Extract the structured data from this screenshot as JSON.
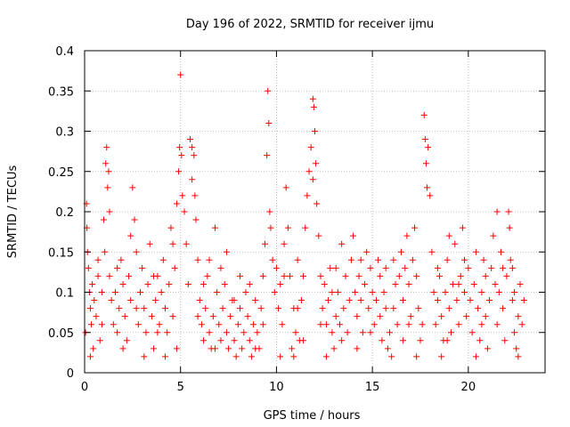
{
  "chart_data": {
    "type": "scatter",
    "title": "Day 196 of 2022, SRMTID for receiver ijmu",
    "xlabel": "GPS time / hours",
    "ylabel": "SRMTID / TECUs",
    "xlim": [
      0,
      24
    ],
    "ylim": [
      0,
      0.4
    ],
    "xticks": [
      0,
      5,
      10,
      15,
      20
    ],
    "yticks": [
      0,
      0.05,
      0.1,
      0.15,
      0.2,
      0.25,
      0.3,
      0.35,
      0.4
    ],
    "xtick_labels": [
      "0",
      "5",
      "10",
      "15",
      "20"
    ],
    "ytick_labels": [
      "0",
      "0.05",
      "0.1",
      "0.15",
      "0.2",
      "0.25",
      "0.3",
      "0.35",
      "0.4"
    ],
    "grid": true,
    "marker": "+",
    "color": "#ff0000",
    "series": [
      {
        "name": "SRMTID",
        "points": [
          [
            0.05,
            0.05
          ],
          [
            0.1,
            0.21
          ],
          [
            0.12,
            0.18
          ],
          [
            0.15,
            0.15
          ],
          [
            0.2,
            0.13
          ],
          [
            0.25,
            0.1
          ],
          [
            0.3,
            0.08
          ],
          [
            0.35,
            0.06
          ],
          [
            0.4,
            0.11
          ],
          [
            0.45,
            0.03
          ],
          [
            0.5,
            0.09
          ],
          [
            0.6,
            0.07
          ],
          [
            0.7,
            0.12
          ],
          [
            0.8,
            0.04
          ],
          [
            0.9,
            0.1
          ],
          [
            1.0,
            0.19
          ],
          [
            1.05,
            0.15
          ],
          [
            1.1,
            0.26
          ],
          [
            1.15,
            0.28
          ],
          [
            1.2,
            0.23
          ],
          [
            1.25,
            0.25
          ],
          [
            1.3,
            0.12
          ],
          [
            1.4,
            0.09
          ],
          [
            1.5,
            0.06
          ],
          [
            1.6,
            0.1
          ],
          [
            1.7,
            0.05
          ],
          [
            1.8,
            0.08
          ],
          [
            1.9,
            0.14
          ],
          [
            2.0,
            0.11
          ],
          [
            2.1,
            0.07
          ],
          [
            2.2,
            0.04
          ],
          [
            2.3,
            0.12
          ],
          [
            2.4,
            0.09
          ],
          [
            2.5,
            0.23
          ],
          [
            2.6,
            0.19
          ],
          [
            2.7,
            0.15
          ],
          [
            2.8,
            0.06
          ],
          [
            2.9,
            0.1
          ],
          [
            3.0,
            0.13
          ],
          [
            3.1,
            0.08
          ],
          [
            3.2,
            0.05
          ],
          [
            3.3,
            0.11
          ],
          [
            3.4,
            0.16
          ],
          [
            3.5,
            0.07
          ],
          [
            3.6,
            0.03
          ],
          [
            3.7,
            0.09
          ],
          [
            3.8,
            0.12
          ],
          [
            3.9,
            0.06
          ],
          [
            4.0,
            0.1
          ],
          [
            4.1,
            0.14
          ],
          [
            4.2,
            0.08
          ],
          [
            4.3,
            0.05
          ],
          [
            4.4,
            0.11
          ],
          [
            4.5,
            0.18
          ],
          [
            4.6,
            0.16
          ],
          [
            4.7,
            0.13
          ],
          [
            4.8,
            0.21
          ],
          [
            4.9,
            0.25
          ],
          [
            4.95,
            0.28
          ],
          [
            5.0,
            0.37
          ],
          [
            5.05,
            0.27
          ],
          [
            5.1,
            0.22
          ],
          [
            5.2,
            0.2
          ],
          [
            5.3,
            0.16
          ],
          [
            5.4,
            0.11
          ],
          [
            5.5,
            0.29
          ],
          [
            5.6,
            0.28
          ],
          [
            5.7,
            0.27
          ],
          [
            5.75,
            0.22
          ],
          [
            5.8,
            0.19
          ],
          [
            5.9,
            0.14
          ],
          [
            6.0,
            0.09
          ],
          [
            6.1,
            0.06
          ],
          [
            6.2,
            0.04
          ],
          [
            6.3,
            0.08
          ],
          [
            6.4,
            0.12
          ],
          [
            6.5,
            0.05
          ],
          [
            6.6,
            0.03
          ],
          [
            6.7,
            0.07
          ],
          [
            6.8,
            0.18
          ],
          [
            6.9,
            0.1
          ],
          [
            7.0,
            0.06
          ],
          [
            7.1,
            0.04
          ],
          [
            7.2,
            0.08
          ],
          [
            7.3,
            0.11
          ],
          [
            7.4,
            0.05
          ],
          [
            7.5,
            0.03
          ],
          [
            7.6,
            0.07
          ],
          [
            7.7,
            0.09
          ],
          [
            7.8,
            0.04
          ],
          [
            7.9,
            0.02
          ],
          [
            8.0,
            0.06
          ],
          [
            8.1,
            0.08
          ],
          [
            8.2,
            0.03
          ],
          [
            8.3,
            0.05
          ],
          [
            8.4,
            0.1
          ],
          [
            8.5,
            0.07
          ],
          [
            8.6,
            0.04
          ],
          [
            8.7,
            0.02
          ],
          [
            8.8,
            0.06
          ],
          [
            8.9,
            0.09
          ],
          [
            9.0,
            0.05
          ],
          [
            9.1,
            0.03
          ],
          [
            9.2,
            0.08
          ],
          [
            9.3,
            0.12
          ],
          [
            9.4,
            0.16
          ],
          [
            9.5,
            0.27
          ],
          [
            9.55,
            0.35
          ],
          [
            9.6,
            0.31
          ],
          [
            9.65,
            0.2
          ],
          [
            9.7,
            0.18
          ],
          [
            9.8,
            0.14
          ],
          [
            9.9,
            0.1
          ],
          [
            10.0,
            0.13
          ],
          [
            10.1,
            0.08
          ],
          [
            10.2,
            0.11
          ],
          [
            10.3,
            0.06
          ],
          [
            10.4,
            0.16
          ],
          [
            10.5,
            0.23
          ],
          [
            10.6,
            0.18
          ],
          [
            10.7,
            0.12
          ],
          [
            10.8,
            0.03
          ],
          [
            10.9,
            0.02
          ],
          [
            11.0,
            0.05
          ],
          [
            11.1,
            0.08
          ],
          [
            11.2,
            0.04
          ],
          [
            11.3,
            0.09
          ],
          [
            11.4,
            0.12
          ],
          [
            11.5,
            0.18
          ],
          [
            11.6,
            0.22
          ],
          [
            11.7,
            0.25
          ],
          [
            11.8,
            0.28
          ],
          [
            11.9,
            0.34
          ],
          [
            11.95,
            0.33
          ],
          [
            12.0,
            0.3
          ],
          [
            12.05,
            0.26
          ],
          [
            12.1,
            0.21
          ],
          [
            12.2,
            0.17
          ],
          [
            12.3,
            0.12
          ],
          [
            12.4,
            0.08
          ],
          [
            12.5,
            0.11
          ],
          [
            12.6,
            0.06
          ],
          [
            12.7,
            0.09
          ],
          [
            12.8,
            0.13
          ],
          [
            12.9,
            0.05
          ],
          [
            13.0,
            0.03
          ],
          [
            13.1,
            0.07
          ],
          [
            13.2,
            0.1
          ],
          [
            13.3,
            0.06
          ],
          [
            13.4,
            0.04
          ],
          [
            13.5,
            0.08
          ],
          [
            13.6,
            0.12
          ],
          [
            13.7,
            0.05
          ],
          [
            13.8,
            0.09
          ],
          [
            13.9,
            0.14
          ],
          [
            14.0,
            0.17
          ],
          [
            14.1,
            0.1
          ],
          [
            14.2,
            0.07
          ],
          [
            14.3,
            0.12
          ],
          [
            14.4,
            0.09
          ],
          [
            14.5,
            0.05
          ],
          [
            14.6,
            0.11
          ],
          [
            14.7,
            0.15
          ],
          [
            14.8,
            0.08
          ],
          [
            14.9,
            0.13
          ],
          [
            15.0,
            0.1
          ],
          [
            15.1,
            0.06
          ],
          [
            15.2,
            0.09
          ],
          [
            15.3,
            0.14
          ],
          [
            15.4,
            0.07
          ],
          [
            15.5,
            0.04
          ],
          [
            15.6,
            0.1
          ],
          [
            15.7,
            0.13
          ],
          [
            15.8,
            0.03
          ],
          [
            15.9,
            0.05
          ],
          [
            16.0,
            0.02
          ],
          [
            16.1,
            0.08
          ],
          [
            16.2,
            0.11
          ],
          [
            16.3,
            0.06
          ],
          [
            16.4,
            0.12
          ],
          [
            16.5,
            0.15
          ],
          [
            16.6,
            0.09
          ],
          [
            16.7,
            0.13
          ],
          [
            16.8,
            0.17
          ],
          [
            16.9,
            0.11
          ],
          [
            17.0,
            0.07
          ],
          [
            17.1,
            0.14
          ],
          [
            17.2,
            0.18
          ],
          [
            17.3,
            0.12
          ],
          [
            17.4,
            0.08
          ],
          [
            17.5,
            0.04
          ],
          [
            17.6,
            0.06
          ],
          [
            17.7,
            0.32
          ],
          [
            17.75,
            0.29
          ],
          [
            17.8,
            0.26
          ],
          [
            17.85,
            0.23
          ],
          [
            17.9,
            0.28
          ],
          [
            18.0,
            0.22
          ],
          [
            18.1,
            0.15
          ],
          [
            18.2,
            0.1
          ],
          [
            18.3,
            0.06
          ],
          [
            18.4,
            0.09
          ],
          [
            18.5,
            0.12
          ],
          [
            18.6,
            0.07
          ],
          [
            18.7,
            0.04
          ],
          [
            18.8,
            0.1
          ],
          [
            18.9,
            0.14
          ],
          [
            19.0,
            0.08
          ],
          [
            19.1,
            0.05
          ],
          [
            19.2,
            0.11
          ],
          [
            19.3,
            0.16
          ],
          [
            19.4,
            0.09
          ],
          [
            19.5,
            0.06
          ],
          [
            19.6,
            0.12
          ],
          [
            19.7,
            0.18
          ],
          [
            19.8,
            0.1
          ],
          [
            19.9,
            0.07
          ],
          [
            20.0,
            0.13
          ],
          [
            20.1,
            0.09
          ],
          [
            20.2,
            0.05
          ],
          [
            20.3,
            0.11
          ],
          [
            20.4,
            0.15
          ],
          [
            20.5,
            0.08
          ],
          [
            20.6,
            0.04
          ],
          [
            20.7,
            0.1
          ],
          [
            20.8,
            0.14
          ],
          [
            20.9,
            0.07
          ],
          [
            21.0,
            0.03
          ],
          [
            21.1,
            0.09
          ],
          [
            21.2,
            0.13
          ],
          [
            21.3,
            0.17
          ],
          [
            21.4,
            0.11
          ],
          [
            21.5,
            0.06
          ],
          [
            21.6,
            0.1
          ],
          [
            21.7,
            0.15
          ],
          [
            21.8,
            0.08
          ],
          [
            21.9,
            0.04
          ],
          [
            22.0,
            0.12
          ],
          [
            22.1,
            0.2
          ],
          [
            22.15,
            0.18
          ],
          [
            22.2,
            0.14
          ],
          [
            22.3,
            0.09
          ],
          [
            22.4,
            0.05
          ],
          [
            22.5,
            0.03
          ],
          [
            22.6,
            0.07
          ],
          [
            22.7,
            0.11
          ],
          [
            22.8,
            0.06
          ],
          [
            22.9,
            0.09
          ],
          [
            0.3,
            0.02
          ],
          [
            1.7,
            0.13
          ],
          [
            3.1,
            0.02
          ],
          [
            4.8,
            0.03
          ],
          [
            6.5,
            0.14
          ],
          [
            8.1,
            0.12
          ],
          [
            10.2,
            0.02
          ],
          [
            12.6,
            0.02
          ],
          [
            14.2,
            0.03
          ],
          [
            16.1,
            0.14
          ],
          [
            18.6,
            0.02
          ],
          [
            20.4,
            0.02
          ],
          [
            22.3,
            0.13
          ],
          [
            2.4,
            0.17
          ],
          [
            7.4,
            0.15
          ],
          [
            13.4,
            0.16
          ],
          [
            19.0,
            0.17
          ],
          [
            21.5,
            0.2
          ],
          [
            5.6,
            0.24
          ],
          [
            11.9,
            0.24
          ],
          [
            0.7,
            0.14
          ],
          [
            1.3,
            0.2
          ],
          [
            2.0,
            0.03
          ],
          [
            3.6,
            0.12
          ],
          [
            4.2,
            0.02
          ],
          [
            5.9,
            0.07
          ],
          [
            6.8,
            0.03
          ],
          [
            7.8,
            0.09
          ],
          [
            8.6,
            0.11
          ],
          [
            9.3,
            0.06
          ],
          [
            10.4,
            0.12
          ],
          [
            11.1,
            0.14
          ],
          [
            12.3,
            0.06
          ],
          [
            13.1,
            0.13
          ],
          [
            14.4,
            0.14
          ],
          [
            15.4,
            0.12
          ],
          [
            16.6,
            0.04
          ],
          [
            17.3,
            0.02
          ],
          [
            18.4,
            0.13
          ],
          [
            19.5,
            0.11
          ],
          [
            20.7,
            0.06
          ],
          [
            21.8,
            0.13
          ],
          [
            22.6,
            0.02
          ],
          [
            0.9,
            0.06
          ],
          [
            2.7,
            0.08
          ],
          [
            4.6,
            0.07
          ],
          [
            6.2,
            0.11
          ],
          [
            8.9,
            0.03
          ],
          [
            10.9,
            0.08
          ],
          [
            12.9,
            0.1
          ],
          [
            14.9,
            0.05
          ],
          [
            16.9,
            0.06
          ],
          [
            18.9,
            0.04
          ],
          [
            20.9,
            0.12
          ],
          [
            22.4,
            0.1
          ],
          [
            3.8,
            0.05
          ],
          [
            7.1,
            0.13
          ],
          [
            11.4,
            0.04
          ],
          [
            15.7,
            0.08
          ],
          [
            19.8,
            0.14
          ]
        ]
      }
    ]
  }
}
